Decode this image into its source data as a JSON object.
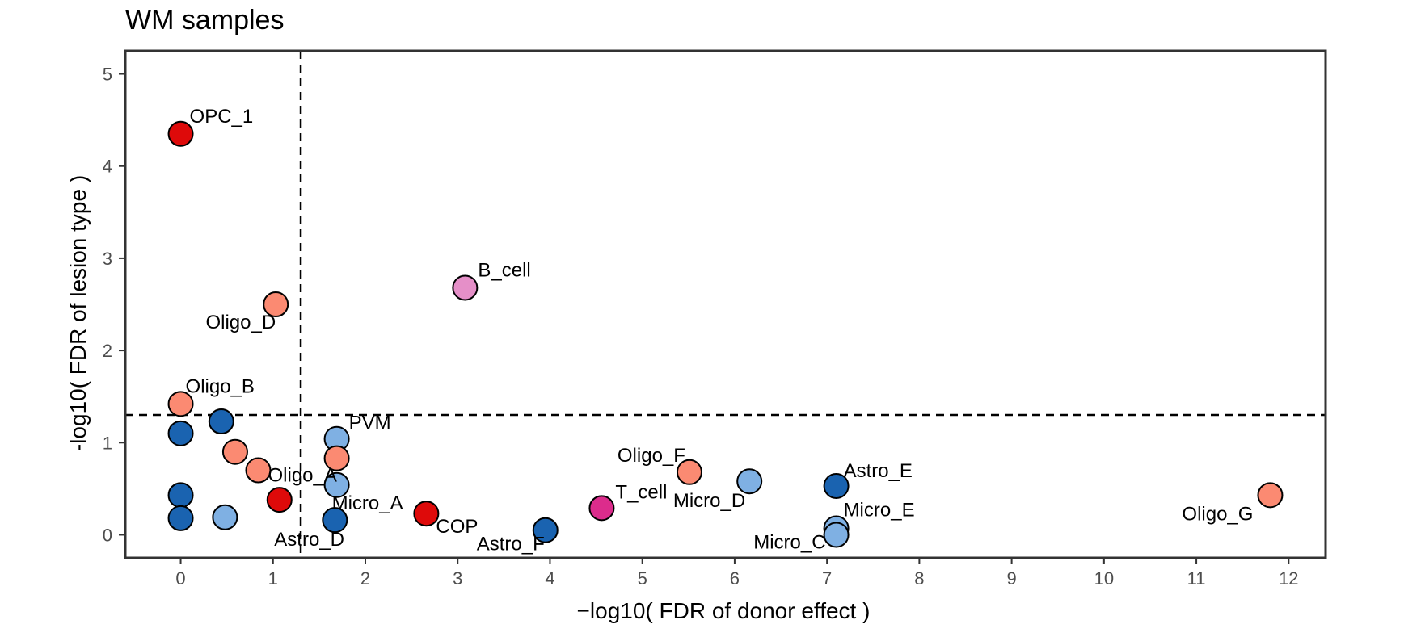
{
  "chart_data": {
    "type": "scatter",
    "title": "WM samples",
    "xlabel": "−log10( FDR of donor effect )",
    "ylabel": "-log10( FDR of lesion type )",
    "xlim": [
      -0.6,
      12.4
    ],
    "ylim": [
      -0.25,
      5.25
    ],
    "xticks": [
      0,
      1,
      2,
      3,
      4,
      5,
      6,
      7,
      8,
      9,
      10,
      11,
      12
    ],
    "yticks": [
      0,
      1,
      2,
      3,
      4,
      5
    ],
    "thresholds": {
      "x": 1.3,
      "y": 1.3
    },
    "grid": false,
    "colors": {
      "red": "#de0a0a",
      "salmon": "#fb8a72",
      "light_blue": "#7fb0e3",
      "dark_blue": "#1a63b0",
      "pink": "#e58fc8",
      "magenta": "#dc2c8c"
    },
    "points": [
      {
        "x": 0.0,
        "y": 4.35,
        "color": "red",
        "label": "OPC_1"
      },
      {
        "x": 1.03,
        "y": 2.5,
        "color": "salmon",
        "label": "Oligo_D"
      },
      {
        "x": 3.08,
        "y": 2.68,
        "color": "pink",
        "label": "B_cell"
      },
      {
        "x": 0.0,
        "y": 1.42,
        "color": "salmon",
        "label": "Oligo_B"
      },
      {
        "x": 0.0,
        "y": 1.1,
        "color": "dark_blue",
        "label": ""
      },
      {
        "x": 0.44,
        "y": 1.23,
        "color": "dark_blue",
        "label": ""
      },
      {
        "x": 0.59,
        "y": 0.9,
        "color": "salmon",
        "label": ""
      },
      {
        "x": 0.84,
        "y": 0.7,
        "color": "salmon",
        "label": "Oligo_A"
      },
      {
        "x": 1.07,
        "y": 0.38,
        "color": "red",
        "label": ""
      },
      {
        "x": 0.0,
        "y": 0.43,
        "color": "dark_blue",
        "label": ""
      },
      {
        "x": 0.0,
        "y": 0.18,
        "color": "dark_blue",
        "label": ""
      },
      {
        "x": 0.48,
        "y": 0.19,
        "color": "light_blue",
        "label": ""
      },
      {
        "x": 1.69,
        "y": 1.04,
        "color": "light_blue",
        "label": "PVM"
      },
      {
        "x": 1.69,
        "y": 0.83,
        "color": "salmon",
        "label": ""
      },
      {
        "x": 1.69,
        "y": 0.54,
        "color": "light_blue",
        "label": "Micro_A"
      },
      {
        "x": 1.67,
        "y": 0.16,
        "color": "dark_blue",
        "label": "Astro_D"
      },
      {
        "x": 2.66,
        "y": 0.23,
        "color": "red",
        "label": "COP"
      },
      {
        "x": 3.95,
        "y": 0.05,
        "color": "dark_blue",
        "label": "Astro_F"
      },
      {
        "x": 4.56,
        "y": 0.29,
        "color": "magenta",
        "label": "T_cell"
      },
      {
        "x": 5.51,
        "y": 0.68,
        "color": "salmon",
        "label": "Oligo_F"
      },
      {
        "x": 6.16,
        "y": 0.58,
        "color": "light_blue",
        "label": "Micro_D"
      },
      {
        "x": 7.1,
        "y": 0.53,
        "color": "dark_blue",
        "label": "Astro_E"
      },
      {
        "x": 7.1,
        "y": 0.07,
        "color": "light_blue",
        "label": "Micro_E"
      },
      {
        "x": 7.1,
        "y": 0.0,
        "color": "light_blue",
        "label": "Micro_C"
      },
      {
        "x": 11.8,
        "y": 0.43,
        "color": "salmon",
        "label": "Oligo_G"
      }
    ]
  }
}
